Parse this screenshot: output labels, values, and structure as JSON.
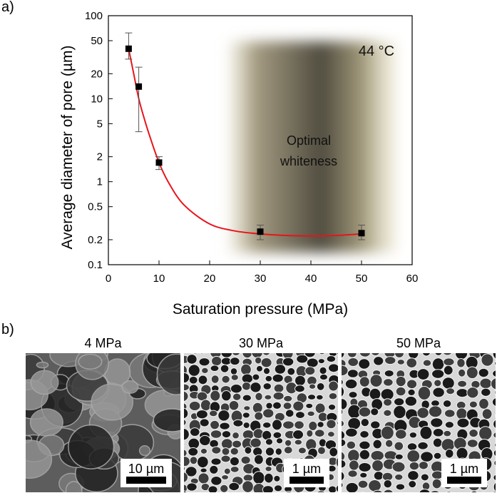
{
  "panel_labels": [
    "a)",
    "b)"
  ],
  "chart_data": {
    "type": "scatter",
    "xlabel": "Saturation pressure (MPa)",
    "ylabel": "Average diameter of pore (µm)",
    "x": [
      4,
      6,
      10,
      30,
      50
    ],
    "series": [
      {
        "color": "#000000",
        "values": [
          40,
          14,
          1.7,
          0.25,
          0.24
        ],
        "err_low": [
          30,
          4,
          1.4,
          0.2,
          0.2
        ],
        "err_high": [
          62,
          24,
          2,
          0.3,
          0.3
        ]
      }
    ],
    "fit": {
      "color": "#e8141a",
      "x": [
        4,
        5,
        6,
        7,
        8,
        10,
        12,
        15,
        20,
        25,
        30,
        35,
        40,
        45,
        50
      ],
      "y": [
        40,
        20,
        10,
        6,
        3.8,
        1.7,
        0.95,
        0.52,
        0.31,
        0.255,
        0.235,
        0.225,
        0.222,
        0.225,
        0.235
      ]
    },
    "shaded_region": [
      24,
      57
    ],
    "annotations": [
      "Optimal",
      "whiteness"
    ],
    "temperature": "44 °C",
    "xlim": [
      0,
      60
    ],
    "xticks": [
      0,
      10,
      20,
      30,
      40,
      50,
      60
    ],
    "ylim": [
      0.1,
      100
    ],
    "yticks": [
      0.1,
      0.2,
      0.5,
      1,
      2,
      5,
      10,
      20,
      50,
      100
    ],
    "log_y": true,
    "grid": false
  },
  "micrographs": [
    {
      "title": "4 MPa",
      "scale_bar": "10 µm"
    },
    {
      "title": "30 MPa",
      "scale_bar": "1 µm"
    },
    {
      "title": "50 MPa",
      "scale_bar": "1 µm"
    }
  ]
}
